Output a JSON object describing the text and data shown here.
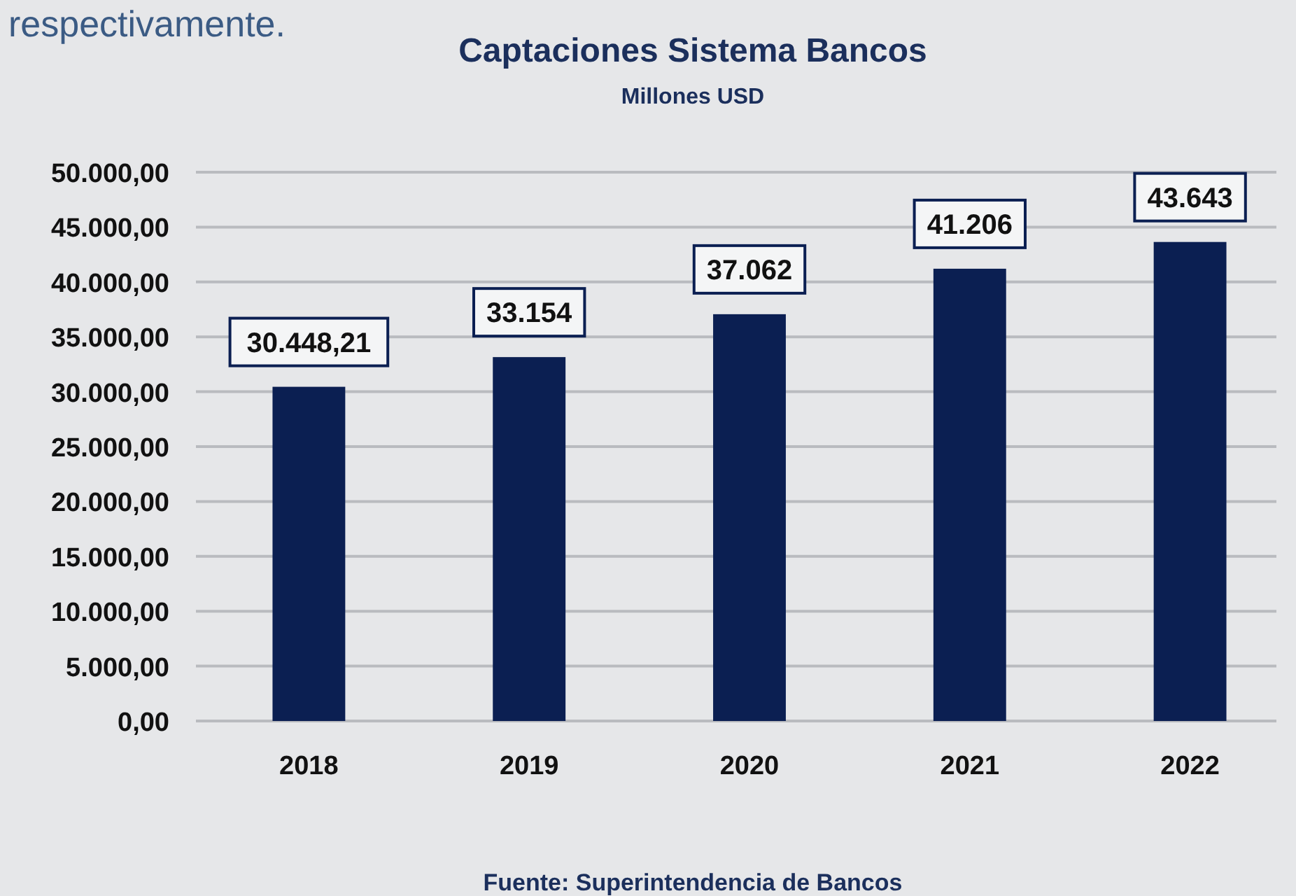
{
  "chart_data": {
    "type": "bar",
    "title": "Captaciones Sistema Bancos",
    "subtitle": "Millones USD",
    "categories": [
      "2018",
      "2019",
      "2020",
      "2021",
      "2022"
    ],
    "values": [
      30448.21,
      33154,
      37062,
      41206,
      43643
    ],
    "value_labels": [
      "30.448,21",
      "33.154",
      "37.062",
      "41.206",
      "43.643"
    ],
    "color": "#0b1f52",
    "ylim": [
      0,
      50000
    ],
    "yticks": [
      {
        "value": 0,
        "label": "0,00"
      },
      {
        "value": 5000,
        "label": "5.000,00"
      },
      {
        "value": 10000,
        "label": "10.000,00"
      },
      {
        "value": 15000,
        "label": "15.000,00"
      },
      {
        "value": 20000,
        "label": "20.000,00"
      },
      {
        "value": 25000,
        "label": "25.000,00"
      },
      {
        "value": 30000,
        "label": "30.000,00"
      },
      {
        "value": 35000,
        "label": "35.000,00"
      },
      {
        "value": 40000,
        "label": "40.000,00"
      },
      {
        "value": 45000,
        "label": "45.000,00"
      },
      {
        "value": 50000,
        "label": "50.000,00"
      }
    ],
    "grid": "y",
    "annotations": [
      "respectivamente.",
      "Fuente: Superintendencia de Bancos"
    ]
  }
}
